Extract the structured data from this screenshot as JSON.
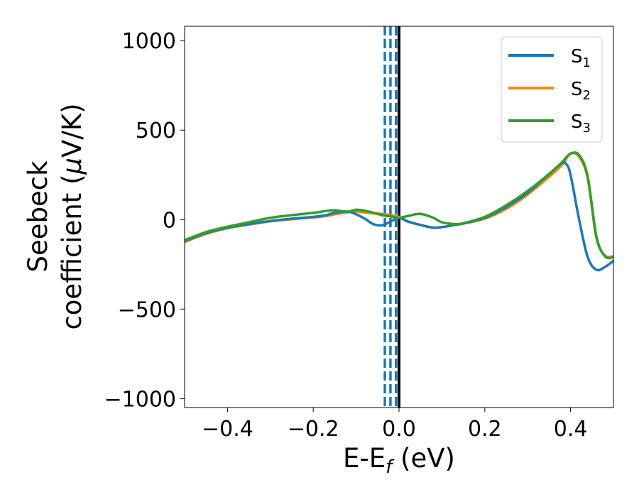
{
  "chart_data": {
    "type": "line",
    "title": "",
    "xlabel": {
      "main": "E-E",
      "sub": "f",
      "suffix": " (eV)"
    },
    "ylabel": {
      "line1": "Seebeck",
      "line2": "coefficient  (",
      "mu": "μ",
      "line2_end": "V/K)"
    },
    "xlim": [
      -0.5,
      0.5
    ],
    "ylim": [
      -1050,
      1080
    ],
    "xticks": [
      -0.4,
      -0.2,
      0.0,
      0.2,
      0.4
    ],
    "xtick_labels": [
      "−0.4",
      "−0.2",
      "0.0",
      "0.2",
      "0.4"
    ],
    "yticks": [
      -1000,
      -500,
      0,
      500,
      1000
    ],
    "ytick_labels": [
      "−1000",
      "−500",
      "0",
      "500",
      "1000"
    ],
    "vlines": [
      {
        "x": 0.0,
        "style": "solid",
        "color": "#000000"
      },
      {
        "x": -0.007,
        "style": "dashed",
        "color": "#1f77b4"
      },
      {
        "x": -0.02,
        "style": "dashed",
        "color": "#1f77b4"
      },
      {
        "x": -0.033,
        "style": "dashed",
        "color": "#1f77b4"
      }
    ],
    "legend_position": "top-right",
    "series": [
      {
        "name": "S",
        "sub": "1",
        "color": "#1f77b4",
        "x": [
          -0.5,
          -0.45,
          -0.4,
          -0.35,
          -0.3,
          -0.25,
          -0.2,
          -0.17,
          -0.15,
          -0.12,
          -0.1,
          -0.08,
          -0.06,
          -0.04,
          -0.02,
          0.0,
          0.02,
          0.05,
          0.08,
          0.1,
          0.13,
          0.15,
          0.2,
          0.25,
          0.3,
          0.35,
          0.38,
          0.39,
          0.4,
          0.42,
          0.44,
          0.46,
          0.48,
          0.5
        ],
        "values": [
          -120,
          -75,
          -45,
          -25,
          -8,
          5,
          15,
          25,
          38,
          45,
          30,
          5,
          -25,
          -32,
          -12,
          10,
          -10,
          -30,
          -45,
          -42,
          -30,
          -22,
          10,
          70,
          150,
          255,
          315,
          310,
          250,
          0,
          -210,
          -280,
          -265,
          -230
        ]
      },
      {
        "name": "S",
        "sub": "2",
        "color": "#ff7f0e",
        "x": [
          -0.5,
          -0.45,
          -0.4,
          -0.35,
          -0.3,
          -0.25,
          -0.2,
          -0.17,
          -0.15,
          -0.12,
          -0.1,
          -0.08,
          -0.06,
          -0.04,
          -0.02,
          0.0,
          0.02,
          0.05,
          0.08,
          0.1,
          0.13,
          0.15,
          0.2,
          0.25,
          0.3,
          0.35,
          0.38,
          0.4,
          0.42,
          0.44,
          0.46,
          0.48,
          0.5
        ],
        "values": [
          -125,
          -80,
          -48,
          -28,
          -10,
          2,
          12,
          20,
          30,
          40,
          45,
          40,
          35,
          32,
          25,
          15,
          -10,
          -30,
          -45,
          -42,
          -30,
          -22,
          5,
          60,
          140,
          240,
          305,
          370,
          350,
          230,
          -100,
          -200,
          -205
        ]
      },
      {
        "name": "S",
        "sub": "3",
        "color": "#2ca02c",
        "x": [
          -0.5,
          -0.45,
          -0.4,
          -0.35,
          -0.3,
          -0.25,
          -0.2,
          -0.17,
          -0.15,
          -0.12,
          -0.1,
          -0.08,
          -0.06,
          -0.04,
          -0.02,
          0.0,
          0.02,
          0.05,
          0.08,
          0.1,
          0.13,
          0.15,
          0.2,
          0.25,
          0.3,
          0.35,
          0.38,
          0.4,
          0.42,
          0.44,
          0.46,
          0.48,
          0.5
        ],
        "values": [
          -115,
          -70,
          -40,
          -15,
          10,
          25,
          38,
          48,
          52,
          44,
          55,
          50,
          38,
          25,
          18,
          10,
          20,
          32,
          10,
          -15,
          -25,
          -20,
          15,
          80,
          160,
          255,
          320,
          368,
          360,
          240,
          -90,
          -205,
          -210
        ]
      }
    ]
  }
}
